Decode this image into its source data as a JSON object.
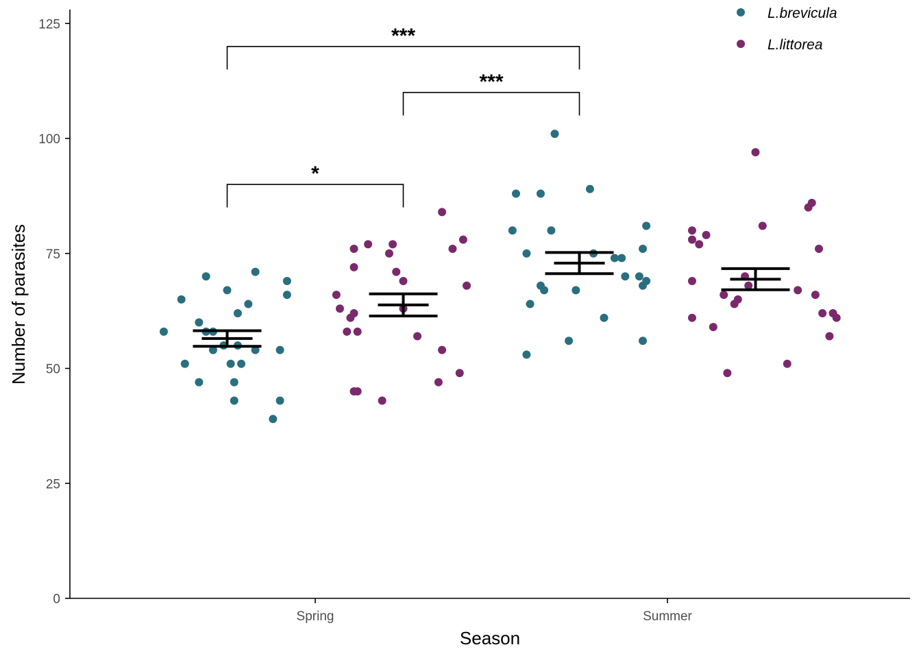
{
  "chart_data": {
    "type": "scatter",
    "xlabel": "Season",
    "ylabel": "Number of parasites",
    "categories": [
      "Spring",
      "Summer"
    ],
    "ylim": [
      0,
      128
    ],
    "yticks": [
      0,
      25,
      50,
      75,
      100,
      125
    ],
    "grid": false,
    "legend_position": "top-right",
    "colors": {
      "L.brevicula": "#2A6F7F",
      "L.littorea": "#7A2A6C",
      "summary": "#000000"
    },
    "series": [
      {
        "name": "L.brevicula",
        "category": "Spring",
        "points": [
          [
            -0.43,
            58
          ],
          [
            -0.38,
            65
          ],
          [
            -0.37,
            51
          ],
          [
            -0.33,
            47
          ],
          [
            -0.33,
            60
          ],
          [
            -0.31,
            58
          ],
          [
            -0.31,
            70
          ],
          [
            -0.29,
            54
          ],
          [
            -0.29,
            58
          ],
          [
            -0.26,
            55
          ],
          [
            -0.25,
            67
          ],
          [
            -0.24,
            51
          ],
          [
            -0.23,
            47
          ],
          [
            -0.23,
            43
          ],
          [
            -0.22,
            62
          ],
          [
            -0.22,
            55
          ],
          [
            -0.21,
            51
          ],
          [
            -0.19,
            64
          ],
          [
            -0.17,
            54
          ],
          [
            -0.17,
            71
          ],
          [
            -0.12,
            39
          ],
          [
            -0.1,
            54
          ],
          [
            -0.1,
            43
          ],
          [
            -0.08,
            66
          ],
          [
            -0.08,
            69
          ]
        ],
        "mean": 56.5,
        "se_low": 54.8,
        "se_high": 58.2
      },
      {
        "name": "L.littorea",
        "category": "Spring",
        "points": [
          [
            0.06,
            66
          ],
          [
            0.07,
            63
          ],
          [
            0.09,
            58
          ],
          [
            0.1,
            61
          ],
          [
            0.11,
            62
          ],
          [
            0.11,
            45
          ],
          [
            0.11,
            72
          ],
          [
            0.11,
            76
          ],
          [
            0.12,
            45
          ],
          [
            0.12,
            58
          ],
          [
            0.15,
            77
          ],
          [
            0.19,
            43
          ],
          [
            0.21,
            75
          ],
          [
            0.22,
            77
          ],
          [
            0.23,
            71
          ],
          [
            0.25,
            63
          ],
          [
            0.25,
            69
          ],
          [
            0.29,
            57
          ],
          [
            0.35,
            47
          ],
          [
            0.36,
            54
          ],
          [
            0.36,
            84
          ],
          [
            0.39,
            76
          ],
          [
            0.41,
            49
          ],
          [
            0.42,
            78
          ],
          [
            0.43,
            68
          ]
        ],
        "mean": 63.8,
        "se_low": 61.4,
        "se_high": 66.2
      },
      {
        "name": "L.brevicula",
        "category": "Summer",
        "points": [
          [
            -0.44,
            80
          ],
          [
            -0.43,
            88
          ],
          [
            -0.4,
            75
          ],
          [
            -0.4,
            53
          ],
          [
            -0.39,
            64
          ],
          [
            -0.36,
            68
          ],
          [
            -0.36,
            88
          ],
          [
            -0.35,
            67
          ],
          [
            -0.33,
            80
          ],
          [
            -0.32,
            101
          ],
          [
            -0.28,
            56
          ],
          [
            -0.26,
            67
          ],
          [
            -0.22,
            89
          ],
          [
            -0.21,
            75
          ],
          [
            -0.18,
            61
          ],
          [
            -0.15,
            74
          ],
          [
            -0.13,
            74
          ],
          [
            -0.12,
            70
          ],
          [
            -0.08,
            70
          ],
          [
            -0.07,
            76
          ],
          [
            -0.07,
            68
          ],
          [
            -0.07,
            56
          ],
          [
            -0.06,
            69
          ],
          [
            -0.06,
            81
          ]
        ],
        "mean": 72.9,
        "se_low": 70.6,
        "se_high": 75.2
      },
      {
        "name": "L.littorea",
        "category": "Summer",
        "points": [
          [
            0.07,
            61
          ],
          [
            0.07,
            69
          ],
          [
            0.07,
            78
          ],
          [
            0.07,
            80
          ],
          [
            0.09,
            77
          ],
          [
            0.11,
            79
          ],
          [
            0.13,
            59
          ],
          [
            0.16,
            66
          ],
          [
            0.17,
            49
          ],
          [
            0.19,
            64
          ],
          [
            0.2,
            65
          ],
          [
            0.22,
            70
          ],
          [
            0.23,
            68
          ],
          [
            0.25,
            97
          ],
          [
            0.27,
            81
          ],
          [
            0.34,
            51
          ],
          [
            0.37,
            67
          ],
          [
            0.4,
            85
          ],
          [
            0.41,
            86
          ],
          [
            0.42,
            66
          ],
          [
            0.43,
            76
          ],
          [
            0.44,
            62
          ],
          [
            0.46,
            57
          ],
          [
            0.47,
            62
          ],
          [
            0.48,
            61
          ]
        ],
        "mean": 69.4,
        "se_low": 67.1,
        "se_high": 71.7
      }
    ],
    "annotations": [
      {
        "label": "*",
        "from": [
          "Spring",
          -0.25
        ],
        "to": [
          "Spring",
          0.25
        ],
        "y_top": 90,
        "y_bottom": 85
      },
      {
        "label": "***",
        "from": [
          "Spring",
          0.25
        ],
        "to": [
          "Summer",
          -0.25
        ],
        "y_top": 110,
        "y_bottom": 105
      },
      {
        "label": "***",
        "from": [
          "Spring",
          -0.25
        ],
        "to": [
          "Summer",
          -0.25
        ],
        "y_top": 120,
        "y_bottom": 115
      }
    ]
  }
}
